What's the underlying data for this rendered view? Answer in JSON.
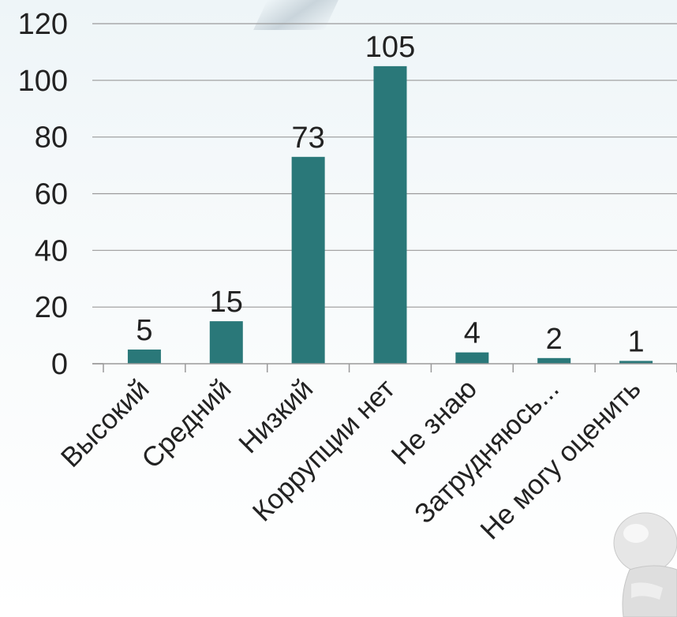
{
  "chart_data": {
    "type": "bar",
    "categories": [
      "Высокий",
      "Средний",
      "Низкий",
      "Коррупции нет",
      "Не знаю",
      "Затрудняюсь...",
      "Не могу оценить"
    ],
    "values": [
      5,
      15,
      73,
      105,
      4,
      2,
      1
    ],
    "data_labels": [
      "5",
      "15",
      "73",
      "105",
      "4",
      "2",
      "1"
    ],
    "y_ticks": [
      "0",
      "20",
      "40",
      "60",
      "80",
      "100",
      "120"
    ],
    "ylim": [
      0,
      120
    ],
    "grid": true,
    "bar_color": "#2a7879"
  }
}
